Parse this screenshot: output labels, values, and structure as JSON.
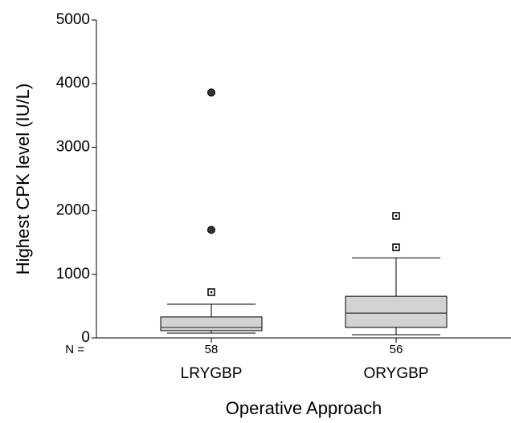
{
  "chart_data": {
    "type": "boxplot",
    "xlabel": "Operative Approach",
    "ylabel": "Highest CPK level (IU/L)",
    "categories": [
      "LRYGBP",
      "ORYGBP"
    ],
    "n_label": "N =",
    "n": [
      58,
      56
    ],
    "boxes": [
      {
        "min": 75,
        "q1": 115,
        "median": 165,
        "q3": 330,
        "max": 530,
        "outliers": [
          720
        ],
        "extremes": [
          1700,
          3860
        ]
      },
      {
        "min": 50,
        "q1": 165,
        "median": 390,
        "q3": 655,
        "max": 1260,
        "outliers": [
          1425,
          1920
        ],
        "extremes": []
      }
    ],
    "color": "#d3d3d3",
    "ylim": [
      0,
      5000
    ],
    "yticks": [
      0,
      1000,
      2000,
      3000,
      4000,
      5000
    ]
  }
}
